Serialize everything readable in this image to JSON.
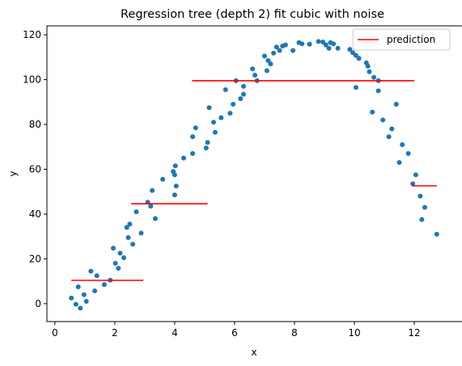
{
  "chart_data": {
    "type": "scatter",
    "title": "Regression tree (depth 2) fit cubic with noise",
    "xlabel": "x",
    "ylabel": "y",
    "xlim": [
      -0.05,
      13.35
    ],
    "ylim": [
      -8,
      124
    ],
    "xticks": [
      0,
      2,
      4,
      6,
      8,
      10,
      12
    ],
    "yticks": [
      0,
      20,
      40,
      60,
      80,
      100,
      120
    ],
    "legend_position": "upper right",
    "grid": false,
    "series": [
      {
        "kind": "scatter",
        "color": "#1f77b4",
        "points": [
          [
            0.55,
            2.5
          ],
          [
            0.7,
            -0.3
          ],
          [
            0.78,
            7.5
          ],
          [
            0.85,
            -2.0
          ],
          [
            0.97,
            4.0
          ],
          [
            1.05,
            1.0
          ],
          [
            1.2,
            14.5
          ],
          [
            1.33,
            5.7
          ],
          [
            1.4,
            12.5
          ],
          [
            1.65,
            8.5
          ],
          [
            1.85,
            10.5
          ],
          [
            1.95,
            24.8
          ],
          [
            2.02,
            18.0
          ],
          [
            2.12,
            15.8
          ],
          [
            2.18,
            22.5
          ],
          [
            2.3,
            20.5
          ],
          [
            2.4,
            34.0
          ],
          [
            2.45,
            29.5
          ],
          [
            2.5,
            35.5
          ],
          [
            2.6,
            26.5
          ],
          [
            2.72,
            41.0
          ],
          [
            2.88,
            31.5
          ],
          [
            3.1,
            45.3
          ],
          [
            3.2,
            43.5
          ],
          [
            3.25,
            50.5
          ],
          [
            3.35,
            38.0
          ],
          [
            3.6,
            55.5
          ],
          [
            3.95,
            59.0
          ],
          [
            4.0,
            48.5
          ],
          [
            4.0,
            57.5
          ],
          [
            4.02,
            61.5
          ],
          [
            4.05,
            52.5
          ],
          [
            4.3,
            65.0
          ],
          [
            4.6,
            74.5
          ],
          [
            4.6,
            67.0
          ],
          [
            4.7,
            78.5
          ],
          [
            5.05,
            69.5
          ],
          [
            5.1,
            72.0
          ],
          [
            5.15,
            87.5
          ],
          [
            5.3,
            81.0
          ],
          [
            5.35,
            76.5
          ],
          [
            5.55,
            83.0
          ],
          [
            5.7,
            95.5
          ],
          [
            5.85,
            85.0
          ],
          [
            5.95,
            89.0
          ],
          [
            6.05,
            99.5
          ],
          [
            6.2,
            91.5
          ],
          [
            6.3,
            97.0
          ],
          [
            6.3,
            93.5
          ],
          [
            6.6,
            104.8
          ],
          [
            6.68,
            102.0
          ],
          [
            6.75,
            99.5
          ],
          [
            7.0,
            110.5
          ],
          [
            7.08,
            104.0
          ],
          [
            7.12,
            108.5
          ],
          [
            7.2,
            107.0
          ],
          [
            7.3,
            111.8
          ],
          [
            7.4,
            114.5
          ],
          [
            7.5,
            113.0
          ],
          [
            7.6,
            115.0
          ],
          [
            7.7,
            115.5
          ],
          [
            7.95,
            113.0
          ],
          [
            8.15,
            116.5
          ],
          [
            8.25,
            116.0
          ],
          [
            8.5,
            115.8
          ],
          [
            8.8,
            117.0
          ],
          [
            8.95,
            116.8
          ],
          [
            9.05,
            115.5
          ],
          [
            9.15,
            114.0
          ],
          [
            9.2,
            116.5
          ],
          [
            9.3,
            116.0
          ],
          [
            9.45,
            114.0
          ],
          [
            9.85,
            113.5
          ],
          [
            9.95,
            112.0
          ],
          [
            10.05,
            110.8
          ],
          [
            10.05,
            96.5
          ],
          [
            10.15,
            109.5
          ],
          [
            10.4,
            107.5
          ],
          [
            10.45,
            106.0
          ],
          [
            10.5,
            103.5
          ],
          [
            10.6,
            85.5
          ],
          [
            10.65,
            101.0
          ],
          [
            10.8,
            95.0
          ],
          [
            10.8,
            99.5
          ],
          [
            10.95,
            82.0
          ],
          [
            11.15,
            74.5
          ],
          [
            11.25,
            78.0
          ],
          [
            11.4,
            89.0
          ],
          [
            11.5,
            63.0
          ],
          [
            11.6,
            71.0
          ],
          [
            11.8,
            67.0
          ],
          [
            11.95,
            53.5
          ],
          [
            12.05,
            57.5
          ],
          [
            12.2,
            48.0
          ],
          [
            12.25,
            37.5
          ],
          [
            12.35,
            43.0
          ],
          [
            12.75,
            31.0
          ]
        ]
      },
      {
        "kind": "step",
        "name": "prediction",
        "color": "#ff0000",
        "segments": [
          {
            "x0": 0.55,
            "x1": 2.95,
            "y": 10.4
          },
          {
            "x0": 2.55,
            "x1": 5.1,
            "y": 44.6
          },
          {
            "x0": 4.58,
            "x1": 12.0,
            "y": 99.5
          },
          {
            "x0": 11.92,
            "x1": 12.75,
            "y": 52.6
          }
        ]
      }
    ]
  }
}
